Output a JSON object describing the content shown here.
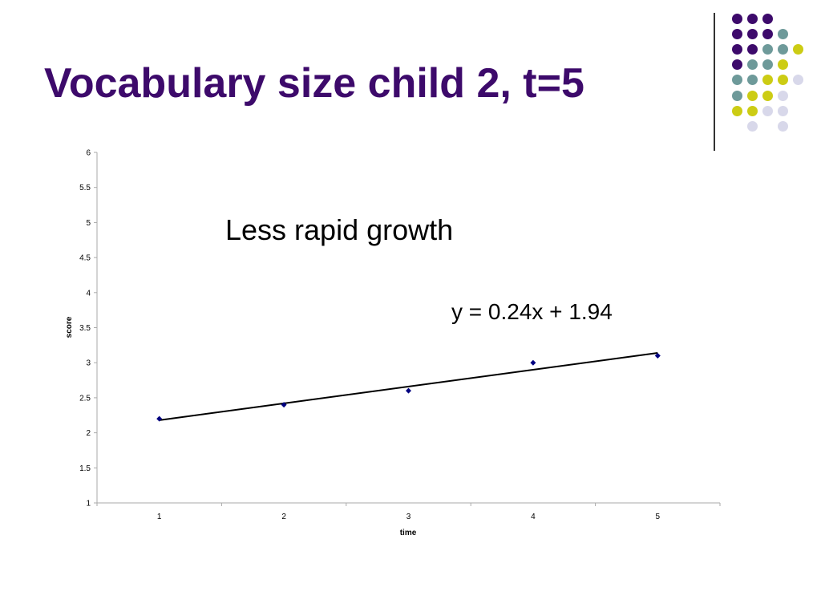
{
  "slide": {
    "title": "Vocabulary size child 2, t=5"
  },
  "decoration": {
    "colors": {
      "purple": "#3d0a6b",
      "teal": "#6e9a9a",
      "olive": "#cccc14",
      "lavender": "#d8d8ea"
    },
    "dot_grid": [
      [
        "purple",
        "purple",
        "purple",
        null,
        null
      ],
      [
        "purple",
        "purple",
        "purple",
        "teal",
        null
      ],
      [
        "purple",
        "purple",
        "teal",
        "teal",
        "olive"
      ],
      [
        "purple",
        "teal",
        "teal",
        "olive",
        null
      ],
      [
        "teal",
        "teal",
        "olive",
        "olive",
        "lavender"
      ],
      [
        "teal",
        "olive",
        "olive",
        "lavender",
        null
      ],
      [
        "olive",
        "olive",
        "lavender",
        "lavender",
        null
      ],
      [
        null,
        "lavender",
        null,
        "lavender",
        null
      ]
    ]
  },
  "chart_data": {
    "type": "scatter",
    "x": [
      1,
      2,
      3,
      4,
      5
    ],
    "y": [
      2.2,
      2.4,
      2.6,
      3.0,
      3.1
    ],
    "marker_color": "#000080",
    "trendline": {
      "slope": 0.24,
      "intercept": 1.94,
      "color": "#000000"
    },
    "xlabel": "time",
    "ylabel": "score",
    "xlim": [
      0.5,
      5.5
    ],
    "ylim": [
      1,
      6
    ],
    "x_ticks": [
      "1",
      "2",
      "3",
      "4",
      "5"
    ],
    "y_ticks": [
      "1",
      "1.5",
      "2",
      "2.5",
      "3",
      "3.5",
      "4",
      "4.5",
      "5",
      "5.5",
      "6"
    ],
    "grid": false,
    "annotations": [
      "Less rapid growth",
      "y = 0.24x + 1.94"
    ]
  }
}
